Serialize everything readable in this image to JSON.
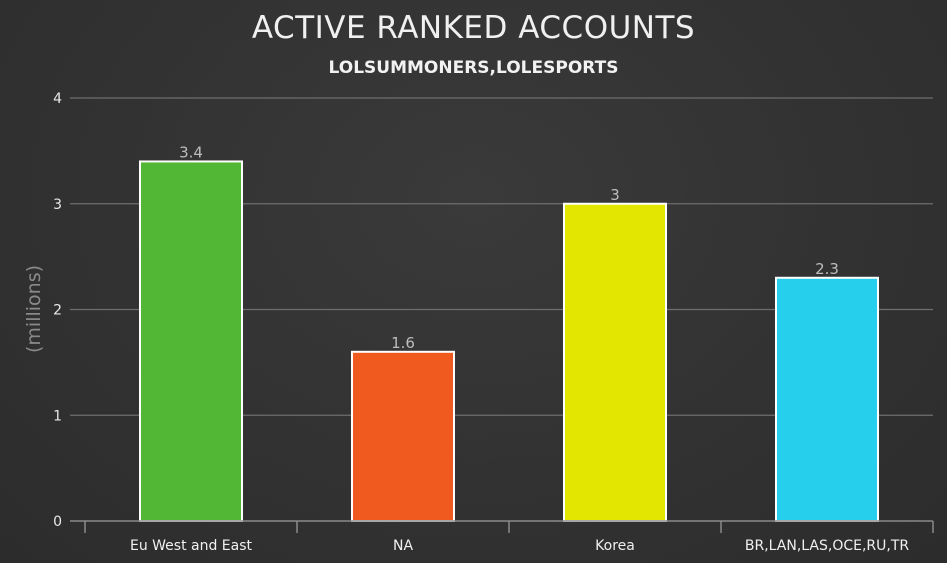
{
  "chart_data": {
    "type": "bar",
    "title": "ACTIVE RANKED ACCOUNTS",
    "subtitle": "LOLSUMMONERS,LOLESPORTS",
    "xlabel": "",
    "ylabel": "(millions)",
    "ylim": [
      0,
      4
    ],
    "yticks": [
      "0",
      "1",
      "2",
      "3",
      "4"
    ],
    "grid": true,
    "categories": [
      "Eu West and East",
      "NA",
      "Korea",
      "BR,LAN,LAS,OCE,RU,TR"
    ],
    "values": [
      3.4,
      1.6,
      3,
      2.3
    ],
    "value_labels": [
      "3.4",
      "1.6",
      "3",
      "2.3"
    ],
    "colors": [
      "#52b734",
      "#f15a1e",
      "#e3e600",
      "#26d0ec"
    ]
  }
}
